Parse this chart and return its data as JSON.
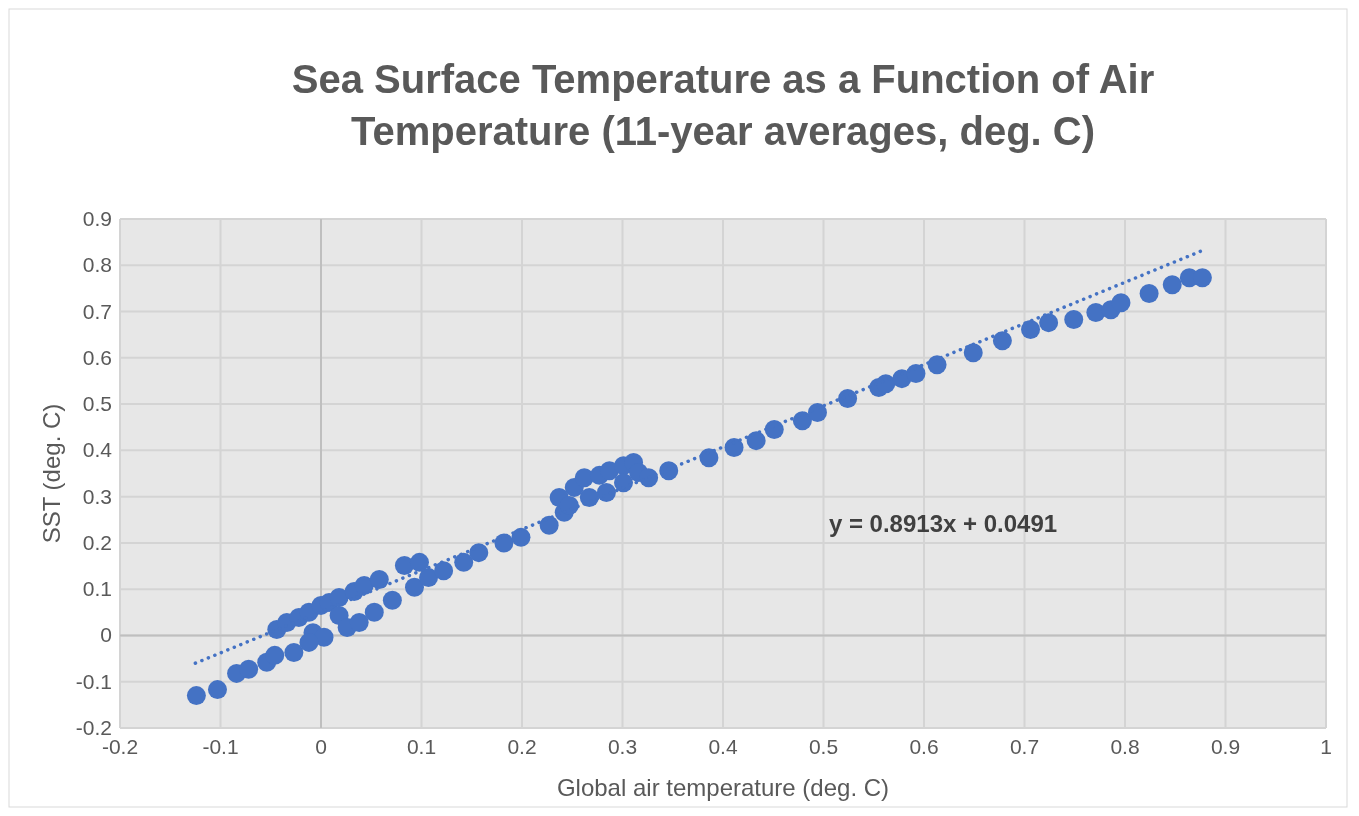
{
  "chart_data": {
    "type": "scatter",
    "title": "Sea Surface Temperature as a Function of Air Temperature (11-year averages, deg. C)",
    "xlabel": "Global air temperature (deg. C)",
    "ylabel": "SST (deg. C)",
    "xlim": [
      -0.2,
      1
    ],
    "xticks": [
      -0.2,
      -0.1,
      0,
      0.1,
      0.2,
      0.3,
      0.4,
      0.5,
      0.6,
      0.7,
      0.8,
      0.9,
      1
    ],
    "ylim": [
      -0.2,
      0.9
    ],
    "yticks": [
      -0.2,
      -0.1,
      0,
      0.1,
      0.2,
      0.3,
      0.4,
      0.5,
      0.6,
      0.7,
      0.8,
      0.9
    ],
    "grid": true,
    "annotations": [
      "y = 0.8913x + 0.0491"
    ],
    "series": [
      {
        "marker": "circle",
        "color": "#4472c4",
        "x": [
          -0.124,
          -0.103,
          -0.084,
          -0.072,
          -0.054,
          -0.046,
          -0.027,
          -0.044,
          -0.034,
          -0.022,
          -0.012,
          0,
          0.008,
          -0.008,
          0.003,
          -0.012,
          0.018,
          0.018,
          0.033,
          0.043,
          0.058,
          0.083,
          0.098,
          0.026,
          0.038,
          0.053,
          0.071,
          0.093,
          0.107,
          0.122,
          0.142,
          0.157,
          0.182,
          0.199,
          0.227,
          0.242,
          0.237,
          0.252,
          0.262,
          0.277,
          0.287,
          0.301,
          0.311,
          0.316,
          0.301,
          0.284,
          0.267,
          0.247,
          0.326,
          0.346,
          0.386,
          0.411,
          0.433,
          0.451,
          0.479,
          0.494,
          0.524,
          0.555,
          0.562,
          0.578,
          0.592,
          0.613,
          0.649,
          0.678,
          0.706,
          0.724,
          0.749,
          0.771,
          0.786,
          0.796,
          0.824,
          0.847,
          0.864,
          0.877
        ],
        "values": [
          -0.13,
          -0.117,
          -0.082,
          -0.073,
          -0.058,
          -0.043,
          -0.037,
          0.013,
          0.028,
          0.039,
          0.05,
          0.065,
          0.071,
          0.006,
          -0.004,
          -0.015,
          0.043,
          0.082,
          0.095,
          0.108,
          0.121,
          0.151,
          0.158,
          0.017,
          0.028,
          0.05,
          0.076,
          0.104,
          0.125,
          0.14,
          0.158,
          0.179,
          0.2,
          0.212,
          0.238,
          0.266,
          0.298,
          0.32,
          0.341,
          0.346,
          0.356,
          0.367,
          0.374,
          0.352,
          0.33,
          0.309,
          0.298,
          0.281,
          0.341,
          0.356,
          0.384,
          0.406,
          0.421,
          0.445,
          0.464,
          0.482,
          0.512,
          0.536,
          0.544,
          0.555,
          0.566,
          0.585,
          0.611,
          0.637,
          0.661,
          0.676,
          0.683,
          0.698,
          0.704,
          0.719,
          0.739,
          0.758,
          0.773,
          0.773
        ]
      },
      {
        "type": "line",
        "color": "#4472c4",
        "line_style": "dotted",
        "marker": "none",
        "x": [
          -0.125,
          0.875
        ],
        "values": [
          -0.06,
          0.83
        ]
      }
    ]
  }
}
